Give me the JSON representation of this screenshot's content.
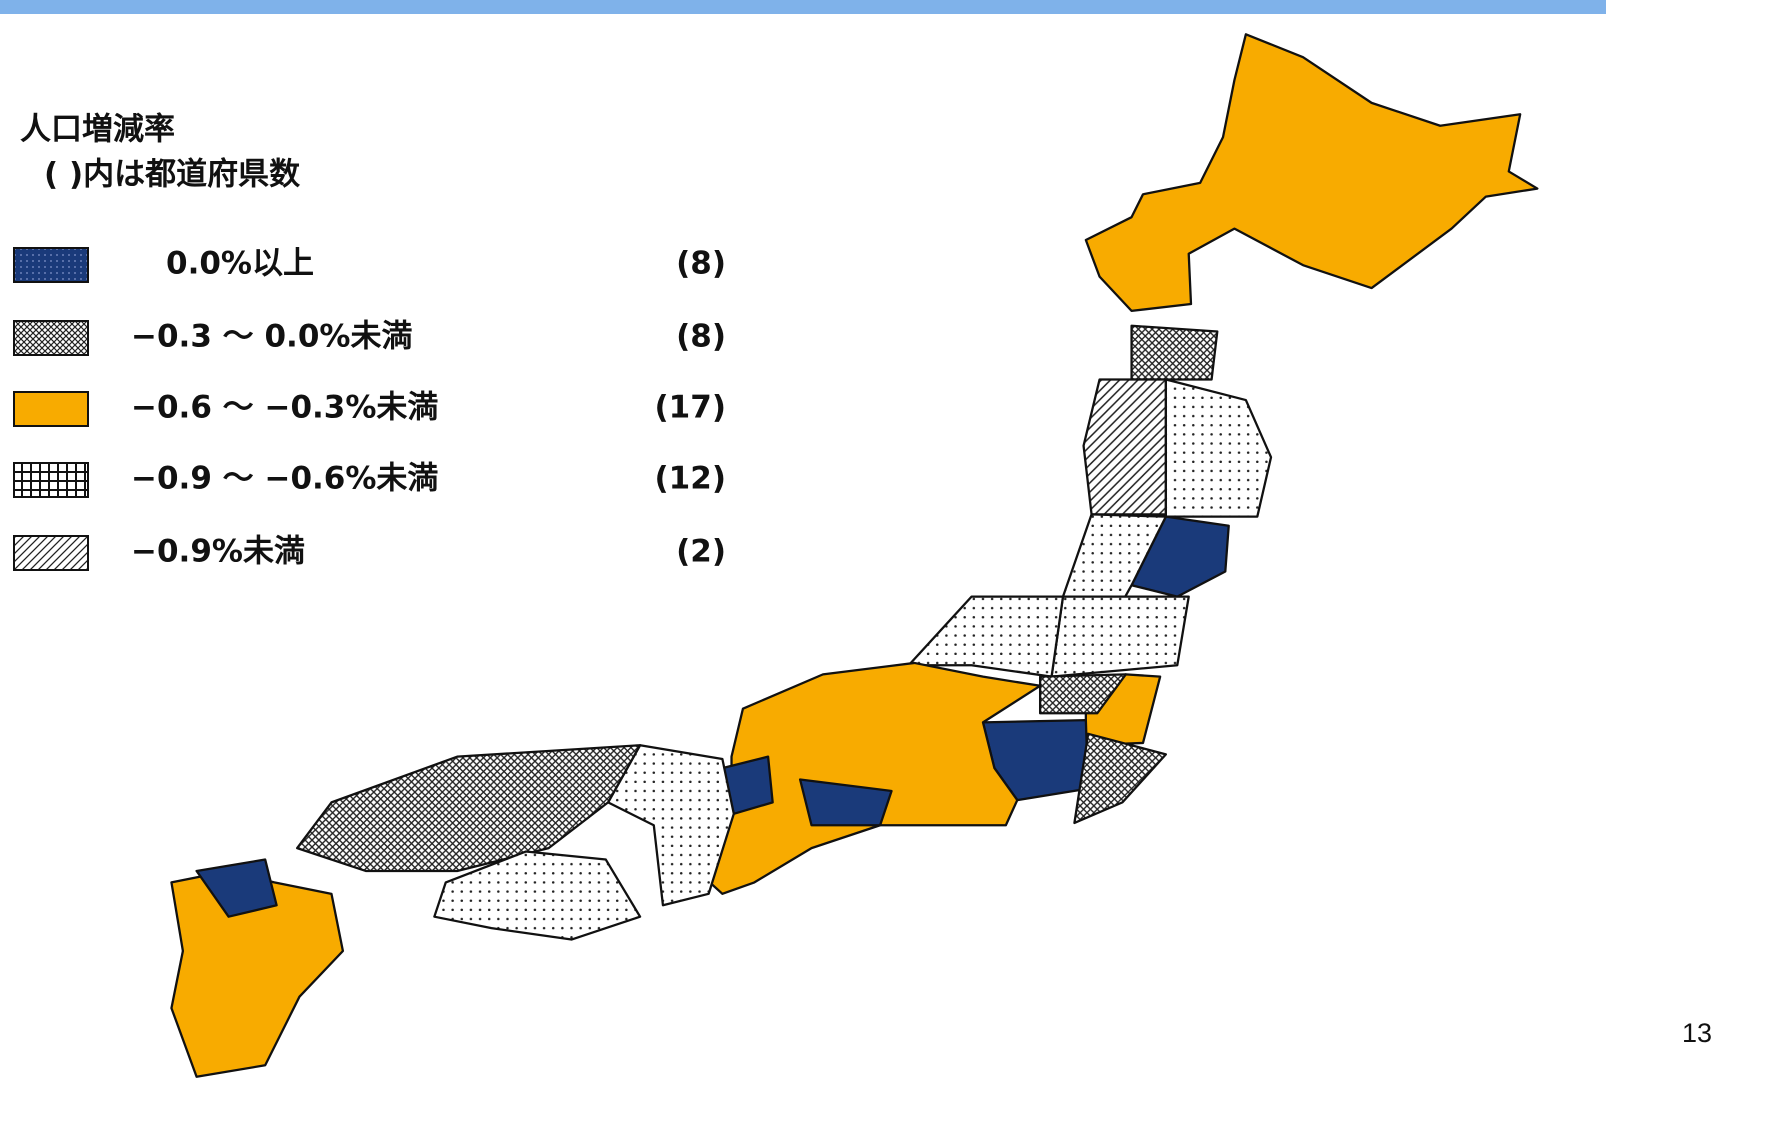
{
  "legend": {
    "title": "人口増減率",
    "subtitle": "( )内は都道府県数",
    "items": [
      {
        "label": "0.0%以上",
        "count": "(8)"
      },
      {
        "label": "−0.3 〜 0.0%未満",
        "count": "(8)"
      },
      {
        "label": "−0.6 〜 −0.3%未満",
        "count": "(17)"
      },
      {
        "label": "−0.9 〜 −0.6%未満",
        "count": "(12)"
      },
      {
        "label": "−0.9%未満",
        "count": "(2)"
      }
    ]
  },
  "page_number": "13"
}
